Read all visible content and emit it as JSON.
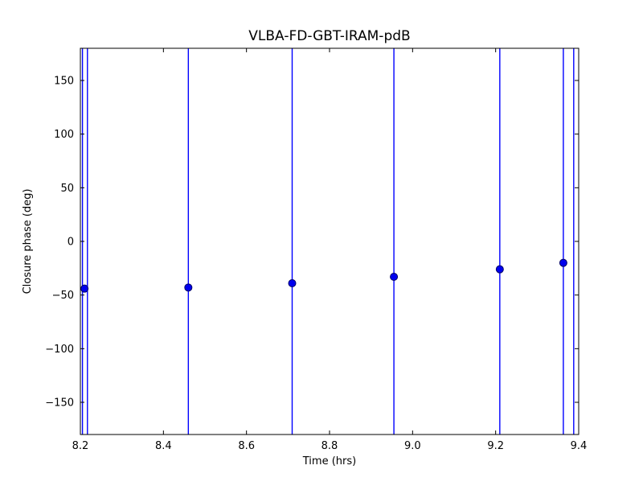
{
  "chart_data": {
    "type": "scatter",
    "title": "VLBA-FD-GBT-IRAM-pdB",
    "xlabel": "Time (hrs)",
    "ylabel": "Closure phase (deg)",
    "xlim": [
      8.2,
      9.4
    ],
    "ylim": [
      -180,
      180
    ],
    "grid": false,
    "legend_position": "none",
    "xticks": {
      "values": [
        8.2,
        8.4,
        8.6,
        8.8,
        9.0,
        9.2,
        9.4
      ],
      "labels": [
        "8.2",
        "8.4",
        "8.6",
        "8.8",
        "9.0",
        "9.2",
        "9.4"
      ]
    },
    "yticks": {
      "values": [
        -150,
        -100,
        -50,
        0,
        50,
        100,
        150
      ],
      "labels": [
        "−150",
        "−100",
        "−50",
        "0",
        "50",
        "100",
        "150"
      ]
    },
    "series": [
      {
        "name": "closure-phase",
        "marker": "o",
        "marker_face_color": "#0000ee",
        "marker_edge_color": "#000066",
        "points": [
          {
            "x": 8.21,
            "y": -44
          },
          {
            "x": 8.46,
            "y": -43
          },
          {
            "x": 8.71,
            "y": -39
          },
          {
            "x": 8.955,
            "y": -33
          },
          {
            "x": 9.21,
            "y": -26
          },
          {
            "x": 9.363,
            "y": -20
          }
        ]
      }
    ],
    "error_bars": {
      "description": "vertical error bars spanning the full y-axis range",
      "full_span": true,
      "color": "#0000ff",
      "x_positions": [
        8.205,
        8.217,
        8.46,
        8.71,
        8.955,
        9.21,
        9.363,
        9.388
      ]
    },
    "frame_color": "#000000",
    "background_color": "#ffffff"
  }
}
